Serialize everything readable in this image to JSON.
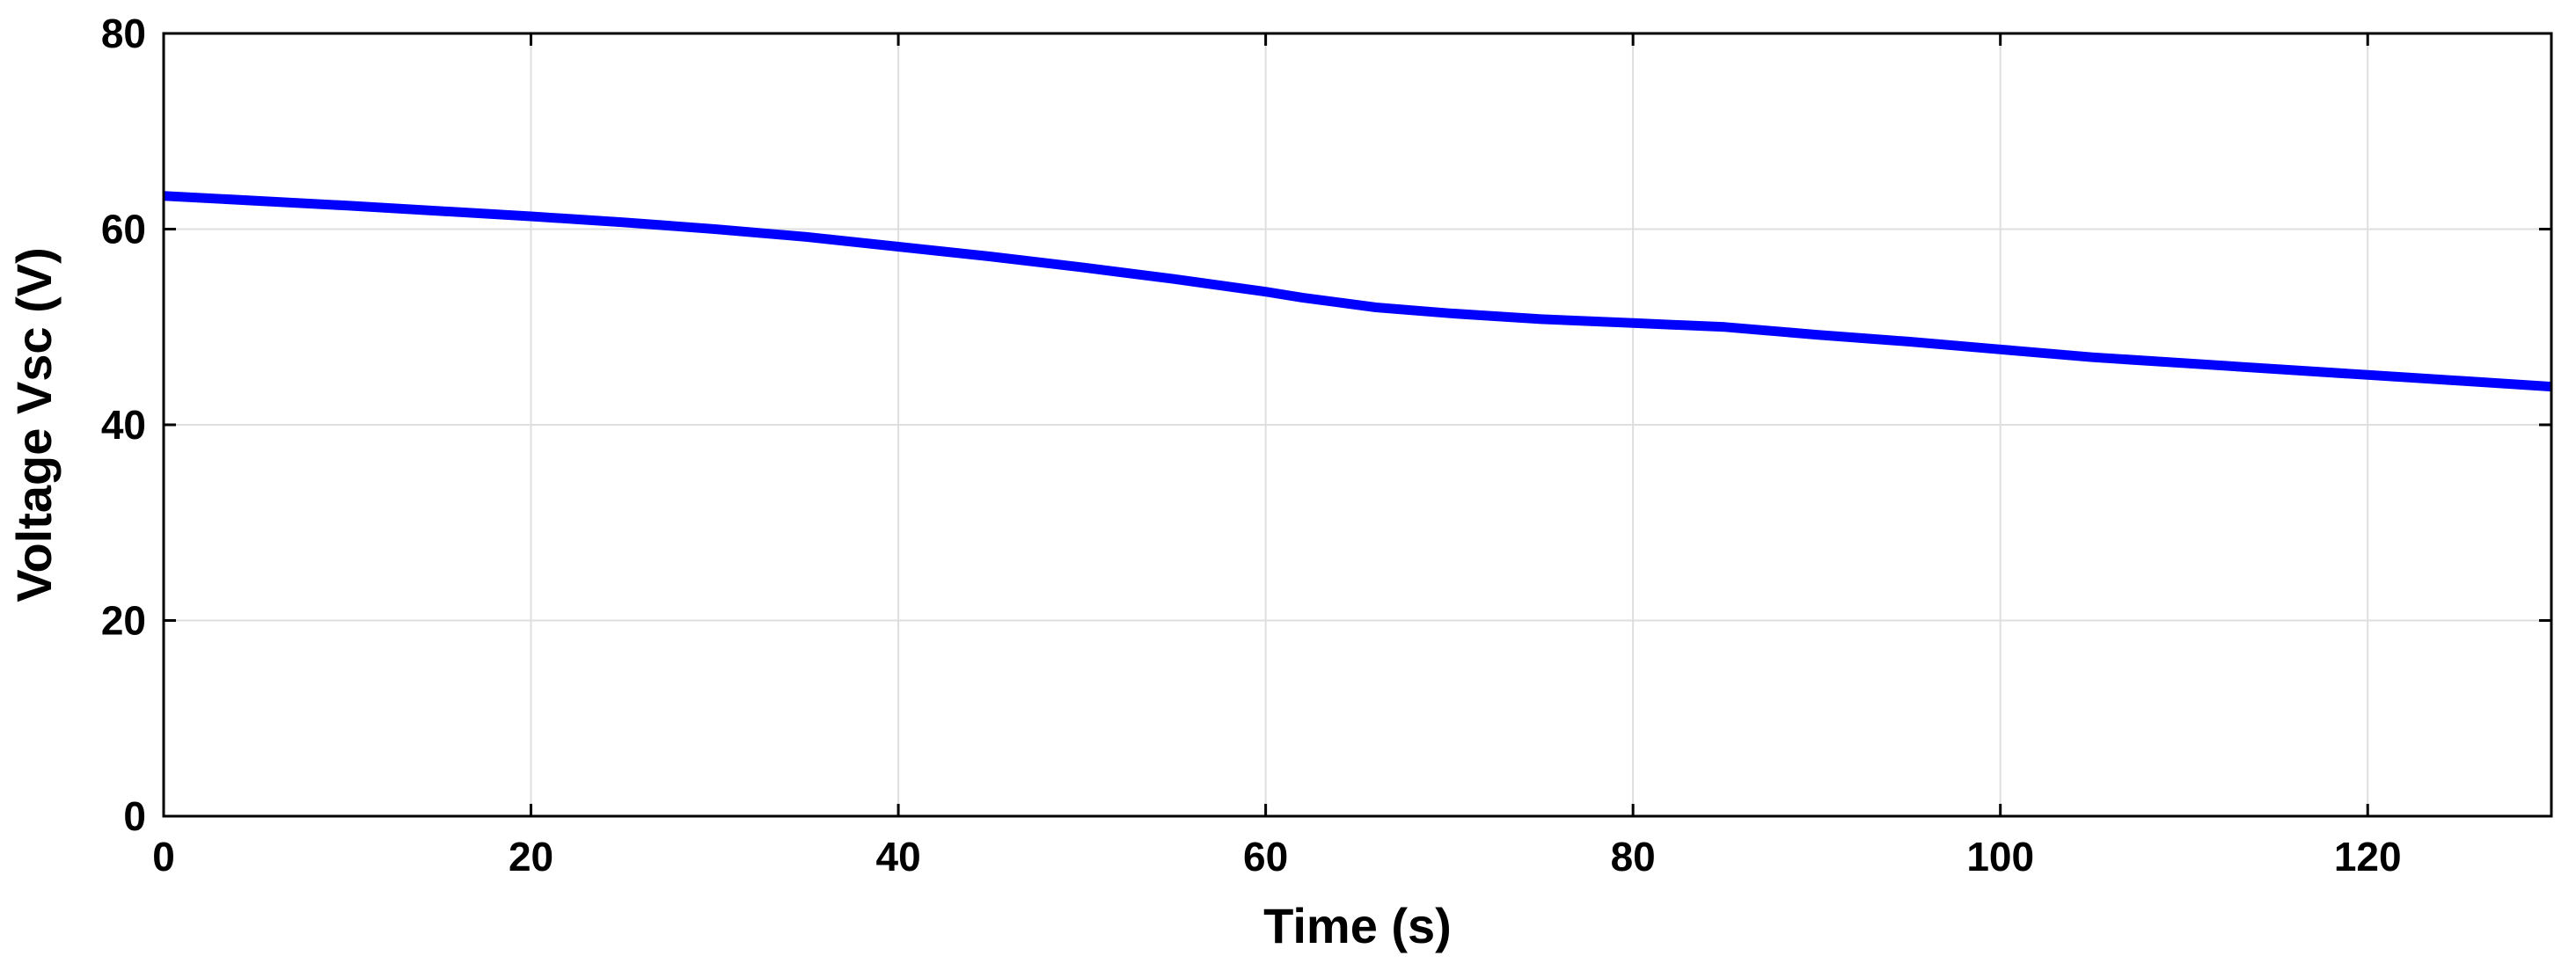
{
  "chart_data": {
    "type": "line",
    "title": "",
    "xlabel": "Time (s)",
    "ylabel": "Voltage Vsc (V)",
    "xlim": [
      0,
      130
    ],
    "ylim": [
      0,
      80
    ],
    "x_ticks": [
      0,
      20,
      40,
      60,
      80,
      100,
      120
    ],
    "y_ticks": [
      0,
      20,
      40,
      60,
      80
    ],
    "grid": true,
    "legend": "none",
    "series": [
      {
        "color": "#0000ff",
        "x": [
          0,
          10,
          20,
          25,
          30,
          35,
          40,
          45,
          50,
          55,
          60,
          62,
          64,
          66,
          70,
          75,
          80,
          85,
          90,
          95,
          100,
          105,
          110,
          115,
          120,
          125,
          130
        ],
        "y": [
          63.4,
          62.4,
          61.3,
          60.7,
          60.0,
          59.2,
          58.2,
          57.2,
          56.1,
          54.9,
          53.6,
          53.0,
          52.5,
          52.0,
          51.4,
          50.8,
          50.4,
          50.0,
          49.2,
          48.5,
          47.7,
          46.9,
          46.3,
          45.7,
          45.1,
          44.5,
          43.9
        ]
      }
    ]
  }
}
